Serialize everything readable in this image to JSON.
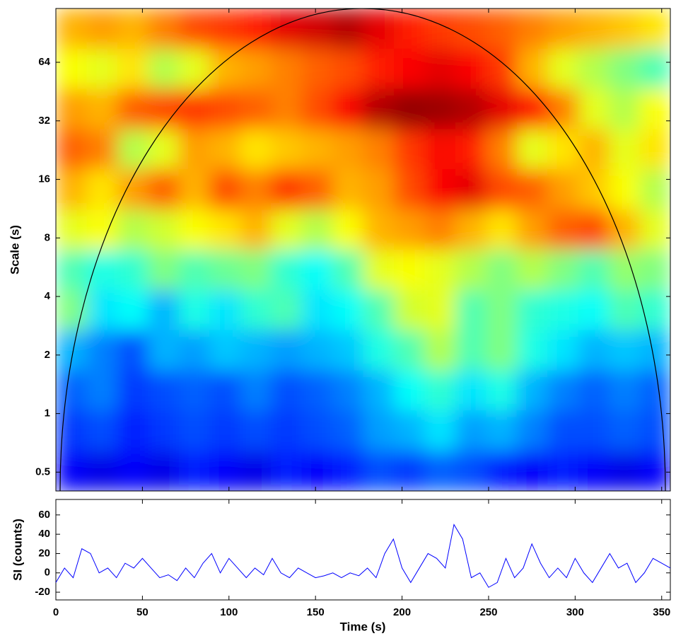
{
  "chart_data": [
    {
      "type": "heatmap",
      "y_label": "Scale (s)",
      "log_y": true,
      "colormap": "jet",
      "xlim": [
        0,
        355
      ],
      "ylim": [
        0.4,
        121
      ],
      "xticks": [
        0,
        50,
        100,
        150,
        200,
        250,
        300,
        350
      ],
      "yticks": [
        0.5,
        1,
        2,
        4,
        8,
        16,
        32,
        64
      ],
      "z": [
        [
          0.7,
          0.72,
          0.7,
          0.75,
          0.8,
          0.82,
          0.85,
          0.9,
          0.92,
          0.95,
          0.9,
          0.85,
          0.82,
          0.8,
          0.78,
          0.75,
          0.72,
          0.7,
          0.68,
          0.65
        ],
        [
          0.62,
          0.6,
          0.65,
          0.55,
          0.6,
          0.7,
          0.72,
          0.75,
          0.78,
          0.8,
          0.85,
          0.88,
          0.9,
          0.88,
          0.82,
          0.7,
          0.6,
          0.55,
          0.5,
          0.45
        ],
        [
          0.72,
          0.7,
          0.78,
          0.8,
          0.82,
          0.8,
          0.78,
          0.75,
          0.8,
          0.88,
          0.95,
          0.98,
          0.97,
          0.95,
          0.9,
          0.85,
          0.75,
          0.6,
          0.55,
          0.62
        ],
        [
          0.78,
          0.75,
          0.55,
          0.6,
          0.72,
          0.7,
          0.65,
          0.68,
          0.7,
          0.72,
          0.75,
          0.82,
          0.88,
          0.85,
          0.75,
          0.6,
          0.65,
          0.7,
          0.6,
          0.65
        ],
        [
          0.7,
          0.65,
          0.72,
          0.78,
          0.7,
          0.8,
          0.75,
          0.82,
          0.78,
          0.7,
          0.72,
          0.8,
          0.88,
          0.9,
          0.8,
          0.78,
          0.72,
          0.68,
          0.62,
          0.55
        ],
        [
          0.6,
          0.62,
          0.55,
          0.58,
          0.62,
          0.65,
          0.7,
          0.6,
          0.55,
          0.62,
          0.7,
          0.72,
          0.75,
          0.7,
          0.65,
          0.72,
          0.78,
          0.8,
          0.7,
          0.6
        ],
        [
          0.45,
          0.4,
          0.42,
          0.5,
          0.45,
          0.48,
          0.5,
          0.42,
          0.38,
          0.45,
          0.6,
          0.62,
          0.6,
          0.55,
          0.5,
          0.55,
          0.5,
          0.45,
          0.52,
          0.5
        ],
        [
          0.5,
          0.35,
          0.38,
          0.3,
          0.4,
          0.35,
          0.42,
          0.45,
          0.35,
          0.38,
          0.45,
          0.58,
          0.6,
          0.45,
          0.5,
          0.42,
          0.4,
          0.38,
          0.45,
          0.42
        ],
        [
          0.3,
          0.25,
          0.2,
          0.3,
          0.28,
          0.32,
          0.3,
          0.28,
          0.3,
          0.32,
          0.4,
          0.45,
          0.55,
          0.45,
          0.5,
          0.4,
          0.35,
          0.3,
          0.32,
          0.3
        ],
        [
          0.22,
          0.25,
          0.18,
          0.2,
          0.22,
          0.2,
          0.25,
          0.2,
          0.22,
          0.25,
          0.3,
          0.38,
          0.42,
          0.35,
          0.4,
          0.3,
          0.25,
          0.22,
          0.25,
          0.22
        ],
        [
          0.18,
          0.2,
          0.15,
          0.18,
          0.2,
          0.18,
          0.2,
          0.18,
          0.2,
          0.22,
          0.28,
          0.3,
          0.35,
          0.28,
          0.3,
          0.25,
          0.2,
          0.2,
          0.22,
          0.2
        ],
        [
          0.12,
          0.1,
          0.12,
          0.1,
          0.15,
          0.12,
          0.1,
          0.15,
          0.12,
          0.15,
          0.2,
          0.18,
          0.22,
          0.2,
          0.15,
          0.12,
          0.15,
          0.12,
          0.1,
          0.12
        ]
      ]
    },
    {
      "type": "line",
      "x_label": "Time (s)",
      "y_label": "SI (counts)",
      "color": "#0000ff",
      "xlim": [
        0,
        355
      ],
      "ylim": [
        -28,
        76
      ],
      "xticks": [
        0,
        50,
        100,
        150,
        200,
        250,
        300,
        350
      ],
      "yticks": [
        -20,
        0,
        20,
        40,
        60
      ],
      "x": [
        0,
        5,
        10,
        15,
        20,
        25,
        30,
        35,
        40,
        45,
        50,
        55,
        60,
        65,
        70,
        75,
        80,
        85,
        90,
        95,
        100,
        105,
        110,
        115,
        120,
        125,
        130,
        135,
        140,
        145,
        150,
        155,
        160,
        165,
        170,
        175,
        180,
        185,
        190,
        195,
        200,
        205,
        210,
        215,
        220,
        225,
        230,
        235,
        240,
        245,
        250,
        255,
        260,
        265,
        270,
        275,
        280,
        285,
        290,
        295,
        300,
        305,
        310,
        315,
        320,
        325,
        330,
        335,
        340,
        345,
        350,
        355
      ],
      "values": [
        -10,
        5,
        -5,
        25,
        20,
        0,
        5,
        -5,
        10,
        5,
        15,
        5,
        -5,
        -2,
        -8,
        5,
        -5,
        10,
        20,
        0,
        15,
        5,
        -5,
        5,
        -2,
        15,
        0,
        -5,
        5,
        0,
        -5,
        -3,
        0,
        -5,
        0,
        -3,
        5,
        -5,
        20,
        35,
        5,
        -10,
        5,
        20,
        15,
        5,
        50,
        35,
        -5,
        0,
        -15,
        -10,
        15,
        -5,
        5,
        30,
        10,
        -5,
        5,
        -5,
        15,
        0,
        -10,
        5,
        20,
        5,
        10,
        -10,
        0,
        15,
        10,
        5
      ]
    }
  ]
}
